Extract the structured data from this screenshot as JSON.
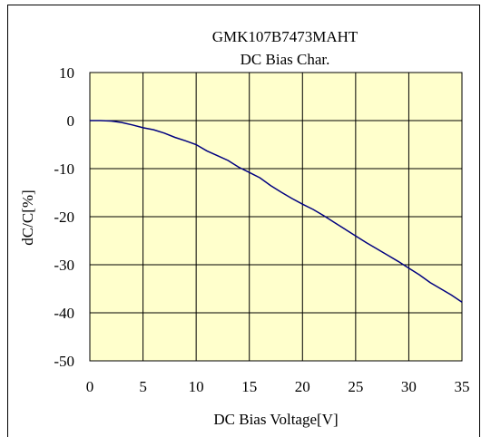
{
  "chart_data": {
    "type": "line",
    "title": "GMK107B7473MAHT",
    "subtitle": "DC Bias Char.",
    "xlabel": "DC Bias Voltage[V]",
    "ylabel": "dC/C[%]",
    "xlim": [
      0,
      35
    ],
    "ylim": [
      -50,
      10
    ],
    "x_ticks": [
      0,
      5,
      10,
      15,
      20,
      25,
      30,
      35
    ],
    "y_ticks": [
      10,
      0,
      -10,
      -20,
      -30,
      -40,
      -50
    ],
    "x_tick_labels": [
      "0",
      "5",
      "10",
      "15",
      "20",
      "25",
      "30",
      "35"
    ],
    "y_tick_labels": [
      "10",
      "0",
      "-10",
      "-20",
      "-30",
      "-40",
      "-50"
    ],
    "grid": true,
    "plot_background": "#ffffcc",
    "line_color": "#000080",
    "series": [
      {
        "x": [
          0,
          1,
          2,
          3,
          4,
          5,
          6,
          7,
          8,
          9,
          10,
          11,
          12,
          13,
          14,
          15,
          16,
          17,
          18,
          19,
          20,
          21,
          22,
          23,
          24,
          25,
          26,
          27,
          28,
          29,
          30,
          31,
          32,
          33,
          34,
          35
        ],
        "values": [
          0,
          0,
          -0.1,
          -0.4,
          -0.9,
          -1.5,
          -1.9,
          -2.6,
          -3.5,
          -4.2,
          -5.0,
          -6.3,
          -7.3,
          -8.3,
          -9.7,
          -10.8,
          -11.9,
          -13.5,
          -14.9,
          -16.2,
          -17.4,
          -18.5,
          -19.8,
          -21.2,
          -22.6,
          -24.0,
          -25.4,
          -26.7,
          -28.0,
          -29.3,
          -30.7,
          -32.1,
          -33.7,
          -35.0,
          -36.3,
          -37.8
        ]
      }
    ]
  }
}
